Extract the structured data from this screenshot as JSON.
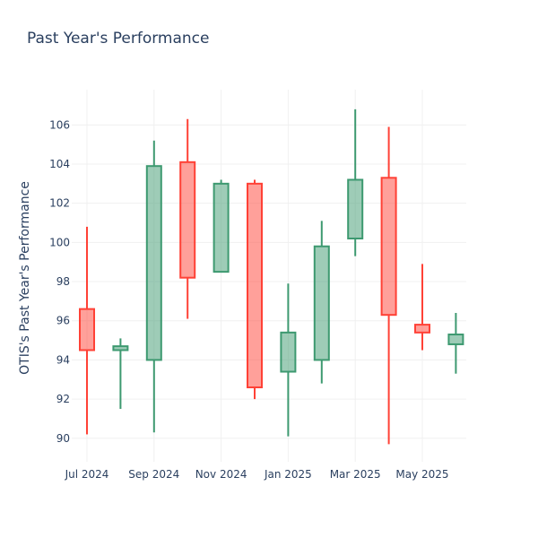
{
  "chart_data": {
    "type": "candlestick",
    "title": "Past Year's Performance",
    "xlabel": "",
    "ylabel": "OTIS's Past Year's Performance",
    "ylim": [
      88.8,
      107.8
    ],
    "yticks": [
      90,
      92,
      94,
      96,
      98,
      100,
      102,
      104,
      106
    ],
    "xticks": [
      {
        "label": "Jul 2024",
        "pos": 0
      },
      {
        "label": "Sep 2024",
        "pos": 2
      },
      {
        "label": "Nov 2024",
        "pos": 4
      },
      {
        "label": "Jan 2025",
        "pos": 6
      },
      {
        "label": "Mar 2025",
        "pos": 8
      },
      {
        "label": "May 2025",
        "pos": 10
      }
    ],
    "grid": true,
    "increasing_color": "#3d9970",
    "decreasing_color": "#ff4136",
    "candles": [
      {
        "open": 96.6,
        "high": 100.8,
        "low": 90.2,
        "close": 94.5
      },
      {
        "open": 94.5,
        "high": 95.1,
        "low": 91.5,
        "close": 94.7
      },
      {
        "open": 94.0,
        "high": 105.2,
        "low": 90.3,
        "close": 103.9
      },
      {
        "open": 104.1,
        "high": 106.3,
        "low": 96.1,
        "close": 98.2
      },
      {
        "open": 98.5,
        "high": 103.2,
        "low": 98.5,
        "close": 103.0
      },
      {
        "open": 103.0,
        "high": 103.2,
        "low": 92.0,
        "close": 92.6
      },
      {
        "open": 93.4,
        "high": 97.9,
        "low": 90.1,
        "close": 95.4
      },
      {
        "open": 94.0,
        "high": 101.1,
        "low": 92.8,
        "close": 99.8
      },
      {
        "open": 100.2,
        "high": 106.8,
        "low": 99.3,
        "close": 103.2
      },
      {
        "open": 103.3,
        "high": 105.9,
        "low": 89.7,
        "close": 96.3
      },
      {
        "open": 95.8,
        "high": 98.9,
        "low": 94.5,
        "close": 95.4
      },
      {
        "open": 94.8,
        "high": 96.4,
        "low": 93.3,
        "close": 95.3
      }
    ]
  }
}
